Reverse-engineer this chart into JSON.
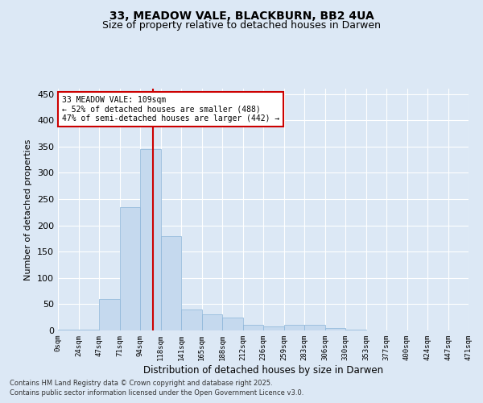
{
  "title1": "33, MEADOW VALE, BLACKBURN, BB2 4UA",
  "title2": "Size of property relative to detached houses in Darwen",
  "xlabel": "Distribution of detached houses by size in Darwen",
  "ylabel": "Number of detached properties",
  "bin_labels": [
    "0sqm",
    "24sqm",
    "47sqm",
    "71sqm",
    "94sqm",
    "118sqm",
    "141sqm",
    "165sqm",
    "188sqm",
    "212sqm",
    "236sqm",
    "259sqm",
    "283sqm",
    "306sqm",
    "330sqm",
    "353sqm",
    "377sqm",
    "400sqm",
    "424sqm",
    "447sqm",
    "471sqm"
  ],
  "bar_values": [
    1,
    2,
    60,
    235,
    345,
    180,
    40,
    30,
    25,
    10,
    8,
    10,
    10,
    5,
    2,
    0,
    0,
    0,
    0,
    0
  ],
  "bar_color": "#c5d9ee",
  "bar_edge_color": "#8ab4d8",
  "vline_color": "#cc0000",
  "annotation_text": "33 MEADOW VALE: 109sqm\n← 52% of detached houses are smaller (488)\n47% of semi-detached houses are larger (442) →",
  "annotation_box_color": "#ffffff",
  "annotation_box_edge": "#cc0000",
  "bg_color": "#dce8f5",
  "plot_bg_color": "#dce8f5",
  "grid_color": "#ffffff",
  "footer1": "Contains HM Land Registry data © Crown copyright and database right 2025.",
  "footer2": "Contains public sector information licensed under the Open Government Licence v3.0.",
  "ylim": [
    0,
    460
  ],
  "title_fontsize": 10,
  "subtitle_fontsize": 9
}
